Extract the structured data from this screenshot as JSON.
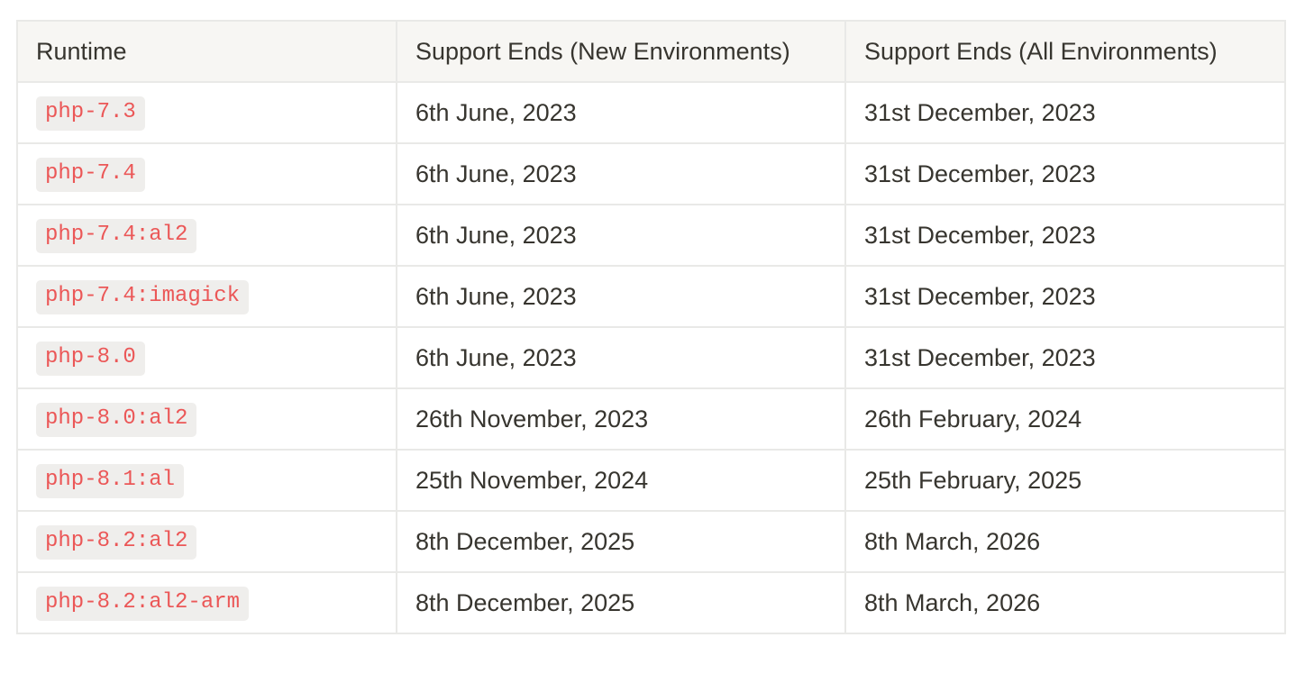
{
  "table": {
    "headers": [
      "Runtime",
      "Support Ends (New Environments)",
      "Support Ends (All Environments)"
    ],
    "rows": [
      {
        "runtime": "php-7.3",
        "new_env": "6th June, 2023",
        "all_env": "31st December, 2023"
      },
      {
        "runtime": "php-7.4",
        "new_env": "6th June, 2023",
        "all_env": "31st December, 2023"
      },
      {
        "runtime": "php-7.4:al2",
        "new_env": "6th June, 2023",
        "all_env": "31st December, 2023"
      },
      {
        "runtime": "php-7.4:imagick",
        "new_env": "6th June, 2023",
        "all_env": "31st December, 2023"
      },
      {
        "runtime": "php-8.0",
        "new_env": "6th June, 2023",
        "all_env": "31st December, 2023"
      },
      {
        "runtime": "php-8.0:al2",
        "new_env": "26th November, 2023",
        "all_env": "26th February, 2024"
      },
      {
        "runtime": "php-8.1:al",
        "new_env": "25th November, 2024",
        "all_env": "25th February, 2025"
      },
      {
        "runtime": "php-8.2:al2",
        "new_env": "8th December, 2025",
        "all_env": "8th March, 2026"
      },
      {
        "runtime": "php-8.2:al2-arm",
        "new_env": "8th December, 2025",
        "all_env": "8th March, 2026"
      }
    ]
  },
  "colors": {
    "code_text": "#eb5757",
    "code_background": "#efeeec",
    "header_background": "#f7f6f3",
    "border": "#e9e9e7",
    "text": "#37352f"
  }
}
